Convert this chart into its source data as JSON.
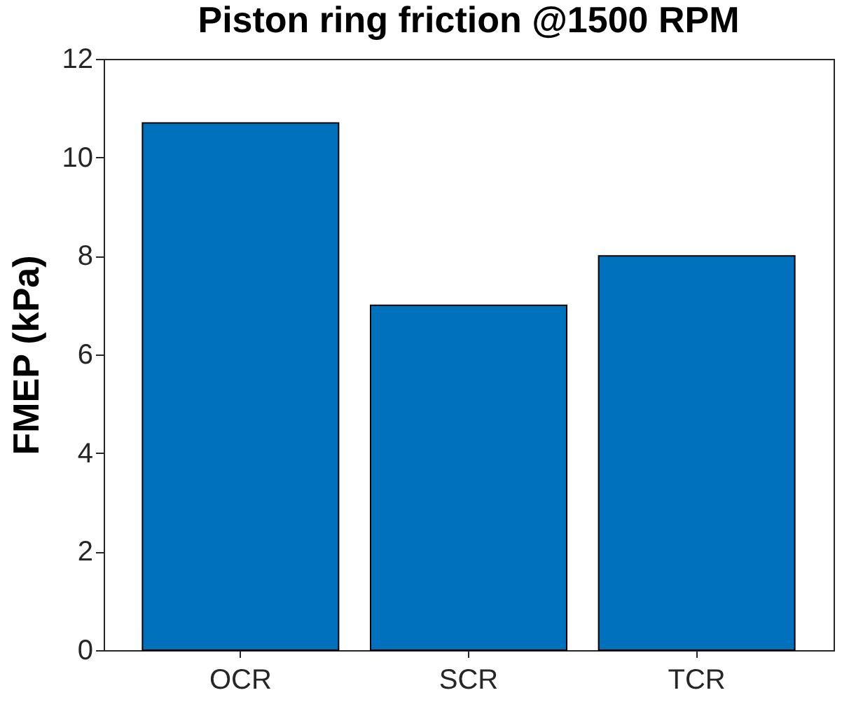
{
  "chart_data": {
    "type": "bar",
    "title": "Piston ring friction @1500 RPM",
    "ylabel": "FMEP (kPa)",
    "categories": [
      "OCR",
      "SCR",
      "TCR"
    ],
    "values": [
      10.7,
      7.0,
      8.0
    ],
    "color": "#0072bd",
    "ylim": [
      0,
      12
    ],
    "yticks": [
      0,
      2,
      4,
      6,
      8,
      10,
      12
    ],
    "grid": false
  }
}
